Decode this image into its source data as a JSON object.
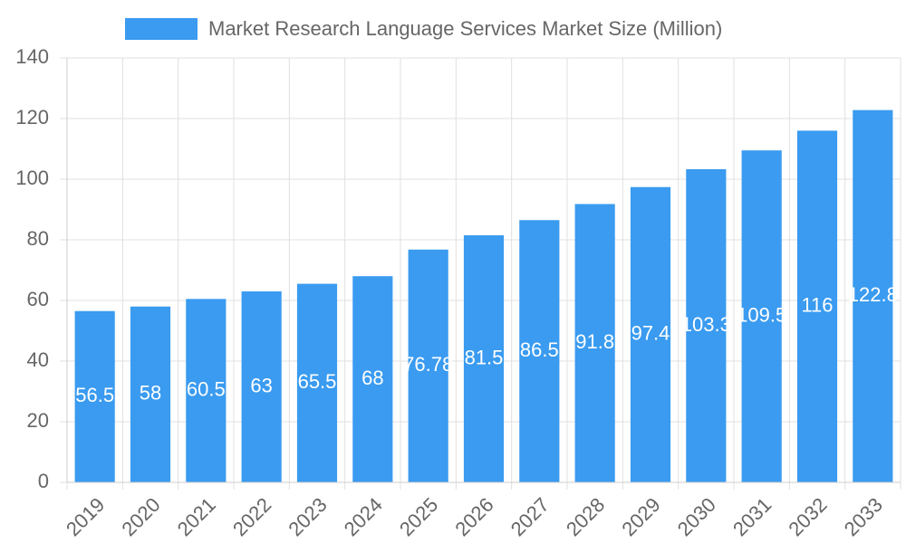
{
  "chart_data": {
    "type": "bar",
    "legend": "Market Research Language Services Market Size (Million)",
    "categories": [
      "2019",
      "2020",
      "2021",
      "2022",
      "2023",
      "2024",
      "2025",
      "2026",
      "2027",
      "2028",
      "2029",
      "2030",
      "2031",
      "2032",
      "2033"
    ],
    "values": [
      56.5,
      58,
      60.5,
      63,
      65.5,
      68,
      76.78,
      81.5,
      86.5,
      91.8,
      97.4,
      103.3,
      109.5,
      116,
      122.8
    ],
    "color": "#3a9bf0",
    "ylim": [
      0,
      140
    ],
    "yticks": [
      0,
      20,
      40,
      60,
      80,
      100,
      120,
      140
    ],
    "grid": true
  }
}
